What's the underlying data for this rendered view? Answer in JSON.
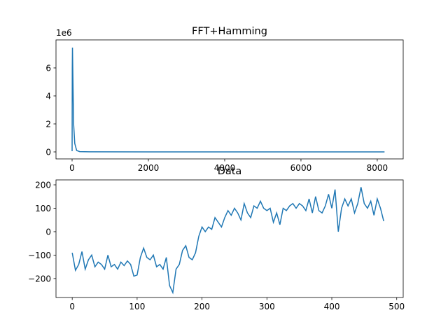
{
  "chart_data": [
    {
      "type": "line",
      "title": "FFT+Hamming",
      "y_offset_label": "1e6",
      "x": [
        0,
        5,
        10,
        20,
        40,
        70,
        120,
        200,
        500,
        2000,
        8191
      ],
      "series": [
        {
          "color": "#1f77b4",
          "values": [
            0.05,
            6.0,
            7.45,
            5.5,
            2.0,
            0.6,
            0.1,
            0.02,
            0.005,
            0.002,
            0.001
          ]
        }
      ],
      "xlim": [
        -422,
        8680
      ],
      "ylim": [
        -0.5,
        8.0
      ],
      "xticks": [
        0,
        2000,
        4000,
        6000,
        8000
      ],
      "yticks": [
        0,
        2,
        4,
        6
      ]
    },
    {
      "type": "line",
      "title": "Data",
      "x": [
        0,
        5,
        10,
        15,
        20,
        25,
        30,
        35,
        40,
        45,
        50,
        55,
        60,
        65,
        70,
        75,
        80,
        85,
        90,
        95,
        100,
        105,
        110,
        115,
        120,
        125,
        130,
        135,
        140,
        145,
        150,
        155,
        160,
        165,
        170,
        175,
        180,
        185,
        190,
        195,
        200,
        205,
        210,
        215,
        220,
        225,
        230,
        235,
        240,
        245,
        250,
        255,
        260,
        265,
        270,
        275,
        280,
        285,
        290,
        295,
        300,
        305,
        310,
        315,
        320,
        325,
        330,
        335,
        340,
        345,
        350,
        355,
        360,
        365,
        370,
        375,
        380,
        385,
        390,
        395,
        400,
        405,
        410,
        415,
        420,
        425,
        430,
        435,
        440,
        445,
        450,
        455,
        460,
        465,
        470,
        475,
        480
      ],
      "series": [
        {
          "color": "#1f77b4",
          "values": [
            -90,
            -165,
            -140,
            -85,
            -160,
            -120,
            -100,
            -150,
            -130,
            -140,
            -160,
            -100,
            -150,
            -140,
            -160,
            -130,
            -145,
            -125,
            -140,
            -190,
            -185,
            -110,
            -70,
            -110,
            -120,
            -100,
            -150,
            -140,
            -160,
            -110,
            -230,
            -260,
            -160,
            -140,
            -80,
            -60,
            -110,
            -120,
            -90,
            -20,
            20,
            0,
            20,
            10,
            60,
            40,
            20,
            60,
            90,
            70,
            100,
            80,
            50,
            120,
            80,
            60,
            110,
            100,
            130,
            100,
            90,
            100,
            40,
            80,
            30,
            100,
            90,
            110,
            120,
            100,
            120,
            110,
            90,
            140,
            80,
            150,
            90,
            80,
            110,
            160,
            100,
            180,
            0,
            100,
            140,
            110,
            140,
            80,
            120,
            190,
            120,
            100,
            130,
            70,
            140,
            100,
            45
          ]
        }
      ],
      "xlim": [
        -25,
        510
      ],
      "ylim": [
        -281,
        221
      ],
      "xticks": [
        0,
        100,
        200,
        300,
        400,
        500
      ],
      "yticks": [
        {
          "value": -200,
          "label": "−200"
        },
        {
          "value": -100,
          "label": "−100"
        },
        0,
        100,
        200
      ]
    }
  ]
}
